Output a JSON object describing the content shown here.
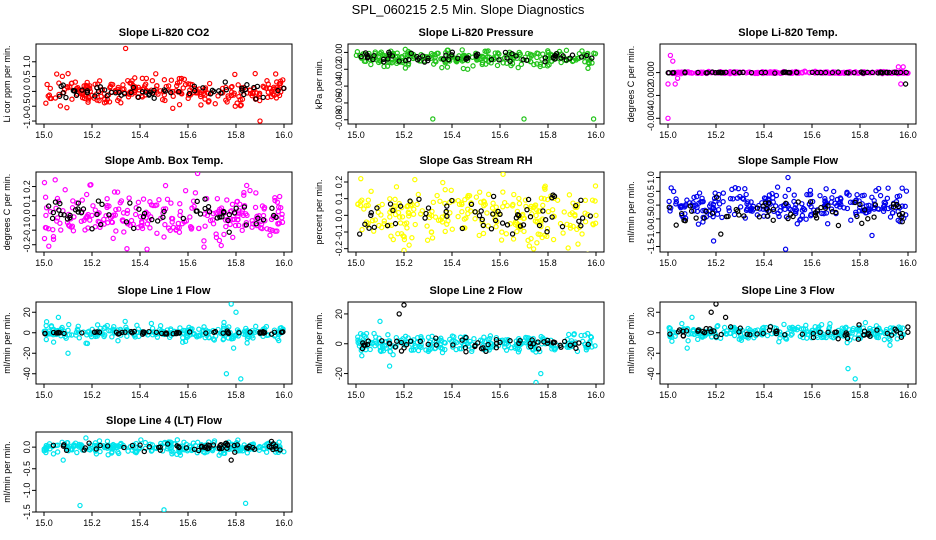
{
  "figure_title": "SPL_060215  2.5 Min. Slope Diagnostics",
  "chart_data": [
    {
      "type": "scatter",
      "title": "Slope Li-820 CO2",
      "ylabel": "Li cor ppm per min.",
      "xlim": [
        15.0,
        16.0
      ],
      "ylim": [
        -1.1,
        1.6
      ],
      "xticks": [
        "15.0",
        "15.2",
        "15.4",
        "15.6",
        "15.8",
        "16.0"
      ],
      "yticks": [
        "-1.0",
        "-0.5",
        "0.0",
        "0.5",
        "1.0"
      ],
      "ytick_values": [
        -1.0,
        -0.5,
        0.0,
        0.5,
        1.0
      ],
      "series": [
        {
          "color": "#ff0000",
          "center": 0.0,
          "spread": 0.22,
          "outliers": [
            [
              15.34,
              1.45
            ],
            [
              15.88,
              0.6
            ],
            [
              15.9,
              -1.0
            ]
          ]
        },
        {
          "color": "#000000",
          "center": 0.0,
          "spread": 0.12,
          "outliers": []
        }
      ]
    },
    {
      "type": "scatter",
      "title": "Slope Li-820 Pressure",
      "ylabel": "kPa per min.",
      "xlim": [
        15.0,
        16.0
      ],
      "ylim": [
        -0.085,
        0.01
      ],
      "xticks": [
        "15.0",
        "15.2",
        "15.4",
        "15.6",
        "15.8",
        "16.0"
      ],
      "yticks": [
        "-0.08",
        "-0.06",
        "-0.04",
        "-0.02",
        "0.00"
      ],
      "ytick_values": [
        -0.08,
        -0.06,
        -0.04,
        -0.02,
        0.0
      ],
      "series": [
        {
          "color": "#22c31a",
          "center": -0.007,
          "spread": 0.005,
          "outliers": [
            [
              15.68,
              0.0
            ],
            [
              15.32,
              -0.079
            ],
            [
              15.7,
              -0.079
            ],
            [
              15.99,
              -0.079
            ]
          ]
        },
        {
          "color": "#000000",
          "center": -0.007,
          "spread": 0.003,
          "outliers": []
        }
      ]
    },
    {
      "type": "scatter",
      "title": "Slope Li-820 Temp.",
      "ylabel": "degrees C per min.",
      "xlim": [
        15.0,
        16.0
      ],
      "ylim": [
        -0.0045,
        0.0025
      ],
      "xticks": [
        "15.0",
        "15.2",
        "15.4",
        "15.6",
        "15.8",
        "16.0"
      ],
      "yticks": [
        "-0.004",
        "-0.002",
        "0.000"
      ],
      "ytick_values": [
        -0.004,
        -0.002,
        0.0
      ],
      "series": [
        {
          "color": "#ff00ff",
          "center": 0.0,
          "spread": 4e-05,
          "outliers": [
            [
              15.0,
              -0.004
            ],
            [
              15.01,
              0.0015
            ],
            [
              15.02,
              0.001
            ],
            [
              15.03,
              -0.001
            ],
            [
              15.04,
              -0.0005
            ],
            [
              15.0,
              -0.001
            ],
            [
              15.96,
              0.0005
            ],
            [
              15.97,
              -0.001
            ],
            [
              15.98,
              0.0005
            ],
            [
              15.95,
              0.0
            ]
          ]
        },
        {
          "color": "#000000",
          "center": 0.0,
          "spread": 2e-05,
          "outliers": [
            [
              15.99,
              -0.001
            ]
          ]
        }
      ]
    },
    {
      "type": "scatter",
      "title": "Slope Amb. Box Temp.",
      "ylabel": "degrees C per min.",
      "xlim": [
        15.0,
        16.0
      ],
      "ylim": [
        -0.25,
        0.3
      ],
      "xticks": [
        "15.0",
        "15.2",
        "15.4",
        "15.6",
        "15.8",
        "16.0"
      ],
      "yticks": [
        "-0.2",
        "-0.1",
        "0.0",
        "0.1",
        "0.2"
      ],
      "ytick_values": [
        -0.2,
        -0.1,
        0.0,
        0.1,
        0.2
      ],
      "series": [
        {
          "color": "#ff00ff",
          "center": 0.0,
          "spread": 0.09,
          "outliers": [
            [
              15.64,
              0.29
            ],
            [
              15.02,
              -0.21
            ]
          ]
        },
        {
          "color": "#000000",
          "center": 0.0,
          "spread": 0.05,
          "outliers": []
        }
      ]
    },
    {
      "type": "scatter",
      "title": "Slope Gas Stream RH",
      "ylabel": "percent per min.",
      "xlim": [
        15.0,
        16.0
      ],
      "ylim": [
        -0.22,
        0.26
      ],
      "xticks": [
        "15.0",
        "15.2",
        "15.4",
        "15.6",
        "15.8",
        "16.0"
      ],
      "yticks": [
        "-0.2",
        "-0.1",
        "0.0",
        "0.1",
        "0.2"
      ],
      "ytick_values": [
        -0.2,
        -0.1,
        0.0,
        0.1,
        0.2
      ],
      "series": [
        {
          "color": "#ffff00",
          "center": 0.0,
          "spread": 0.08,
          "outliers": [
            [
              15.02,
              0.22
            ],
            [
              15.2,
              -0.21
            ]
          ]
        },
        {
          "color": "#000000",
          "center": 0.0,
          "spread": 0.06,
          "outliers": []
        }
      ]
    },
    {
      "type": "scatter",
      "title": "Slope Sample Flow",
      "ylabel": "ml/min per min.",
      "xlim": [
        15.0,
        16.0
      ],
      "ylim": [
        -1.7,
        1.2
      ],
      "xticks": [
        "15.0",
        "15.2",
        "15.4",
        "15.6",
        "15.8",
        "16.0"
      ],
      "yticks": [
        "-1.5",
        "-1.0",
        "-0.5",
        "0.0",
        "0.5",
        "1.0"
      ],
      "ytick_values": [
        -1.5,
        -1.0,
        -0.5,
        0.0,
        0.5,
        1.0
      ],
      "series": [
        {
          "color": "#0000ee",
          "center": 0.0,
          "spread": 0.28,
          "outliers": [
            [
              15.5,
              1.0
            ],
            [
              15.19,
              -1.3
            ],
            [
              15.49,
              -1.6
            ],
            [
              15.85,
              -1.1
            ]
          ]
        },
        {
          "color": "#000000",
          "center": -0.25,
          "spread": 0.2,
          "outliers": [
            [
              15.22,
              -1.05
            ]
          ]
        }
      ]
    },
    {
      "type": "scatter",
      "title": "Slope Line 1 Flow",
      "ylabel": "ml/min per min.",
      "xlim": [
        15.0,
        16.0
      ],
      "ylim": [
        -50,
        30
      ],
      "xticks": [
        "15.0",
        "15.2",
        "15.4",
        "15.6",
        "15.8",
        "16.0"
      ],
      "yticks": [
        "-40",
        "-20",
        "0",
        "20"
      ],
      "ytick_values": [
        -40,
        -20,
        0,
        20
      ],
      "series": [
        {
          "color": "#00e5ee",
          "center": 0.0,
          "spread": 3.5,
          "outliers": [
            [
              15.78,
              28
            ],
            [
              15.8,
              20
            ],
            [
              15.76,
              -40
            ],
            [
              15.82,
              -45
            ],
            [
              15.06,
              15
            ],
            [
              15.1,
              -20
            ],
            [
              15.75,
              10
            ],
            [
              15.79,
              -15
            ]
          ]
        },
        {
          "color": "#000000",
          "center": 0.0,
          "spread": 0.6,
          "outliers": []
        }
      ]
    },
    {
      "type": "scatter",
      "title": "Slope Line 2 Flow",
      "ylabel": "ml/min per min.",
      "xlim": [
        15.0,
        16.0
      ],
      "ylim": [
        -27,
        28
      ],
      "xticks": [
        "15.0",
        "15.2",
        "15.4",
        "15.6",
        "15.8",
        "16.0"
      ],
      "yticks": [
        "-20",
        "0",
        "20"
      ],
      "ytick_values": [
        -20,
        0,
        20
      ],
      "series": [
        {
          "color": "#00e5ee",
          "center": 0.0,
          "spread": 3.0,
          "outliers": [
            [
              15.75,
              -26
            ],
            [
              15.77,
              -20
            ],
            [
              15.1,
              15
            ],
            [
              15.14,
              -15
            ]
          ]
        },
        {
          "color": "#000000",
          "center": 0.0,
          "spread": 2.0,
          "outliers": [
            [
              15.2,
              26
            ],
            [
              15.18,
              20
            ]
          ]
        }
      ]
    },
    {
      "type": "scatter",
      "title": "Slope Line 3 Flow",
      "ylabel": "ml/min per min.",
      "xlim": [
        15.0,
        16.0
      ],
      "ylim": [
        -50,
        30
      ],
      "xticks": [
        "15.0",
        "15.2",
        "15.4",
        "15.6",
        "15.8",
        "16.0"
      ],
      "yticks": [
        "-40",
        "-20",
        "0",
        "20"
      ],
      "ytick_values": [
        -40,
        -20,
        0,
        20
      ],
      "series": [
        {
          "color": "#00e5ee",
          "center": 0.0,
          "spread": 4.0,
          "outliers": [
            [
              15.78,
              -45
            ],
            [
              15.75,
              -35
            ],
            [
              15.1,
              15
            ],
            [
              15.08,
              -15
            ]
          ]
        },
        {
          "color": "#000000",
          "center": 0.0,
          "spread": 3.0,
          "outliers": [
            [
              15.2,
              28
            ],
            [
              15.18,
              20
            ],
            [
              15.24,
              15
            ]
          ]
        }
      ]
    },
    {
      "type": "scatter",
      "title": "Slope Line 4 (LT) Flow",
      "ylabel": "ml/min per min.",
      "xlim": [
        15.0,
        16.0
      ],
      "ylim": [
        -1.5,
        0.35
      ],
      "xticks": [
        "15.0",
        "15.2",
        "15.4",
        "15.6",
        "15.8",
        "16.0"
      ],
      "yticks": [
        "-1.5",
        "-1.0",
        "-0.5",
        "0.0"
      ],
      "ytick_values": [
        -1.5,
        -1.0,
        -0.5,
        0.0
      ],
      "series": [
        {
          "color": "#00e5ee",
          "center": 0.0,
          "spread": 0.08,
          "outliers": [
            [
              15.15,
              -1.35
            ],
            [
              15.5,
              -1.45
            ],
            [
              15.84,
              -1.3
            ],
            [
              15.08,
              -0.3
            ]
          ]
        },
        {
          "color": "#000000",
          "center": 0.0,
          "spread": 0.05,
          "outliers": [
            [
              15.78,
              -0.3
            ]
          ]
        }
      ]
    }
  ]
}
